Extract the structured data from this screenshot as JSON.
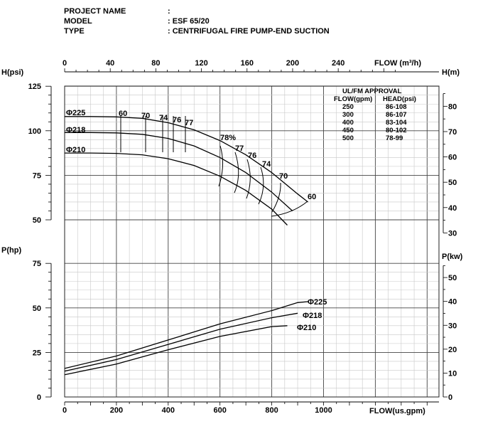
{
  "header": {
    "rows": [
      {
        "label": "PROJECT NAME",
        "value": ""
      },
      {
        "label": "MODEL",
        "value": "ESF 65/20"
      },
      {
        "label": "TYPE",
        "value": "CENTRIFUGAL FIRE PUMP-END SUCTION"
      }
    ]
  },
  "chart_data": [
    {
      "type": "line",
      "title": "",
      "xlabel": "FLOW(us.gpm)",
      "x_secondary_label": "FLOW (m³/h)",
      "ylabel": "H(psi)",
      "y_secondary_label": "H(m)",
      "xlim": [
        0,
        1300
      ],
      "ylim": [
        50,
        125
      ],
      "x_ticks": [
        0,
        200,
        400,
        600,
        800,
        1000
      ],
      "x_secondary_ticks": [
        0,
        40,
        80,
        120,
        160,
        200,
        240
      ],
      "y_ticks": [
        50,
        75,
        100,
        125
      ],
      "y_secondary_ticks": [
        30,
        40,
        50,
        60,
        70,
        80
      ],
      "grid": true,
      "series": [
        {
          "name": "Φ225",
          "x": [
            0,
            100,
            200,
            300,
            400,
            500,
            600,
            700,
            800,
            900,
            940
          ],
          "y": [
            108,
            108,
            107.8,
            107,
            104.5,
            100.5,
            94.5,
            86.5,
            76.5,
            64.5,
            60
          ]
        },
        {
          "name": "Φ218",
          "x": [
            0,
            100,
            200,
            300,
            400,
            500,
            600,
            700,
            800,
            880
          ],
          "y": [
            99,
            99,
            98.8,
            98,
            95.7,
            91.5,
            85,
            76.5,
            65.5,
            55
          ]
        },
        {
          "name": "Φ210",
          "x": [
            0,
            100,
            200,
            300,
            400,
            500,
            600,
            700,
            800,
            860
          ],
          "y": [
            87.5,
            87.5,
            87.3,
            86.5,
            84.3,
            80.5,
            74.5,
            66.5,
            56,
            47
          ]
        }
      ],
      "efficiency_labels": [
        "60",
        "70",
        "74",
        "76",
        "77",
        "78%",
        "77",
        "76",
        "74",
        "70",
        "60"
      ],
      "approval_table": {
        "title": "UL/FM APPROVAL",
        "columns": [
          "FLOW(gpm)",
          "HEAD(psi)"
        ],
        "rows": [
          [
            "250",
            "86-108"
          ],
          [
            "300",
            "86-107"
          ],
          [
            "400",
            "83-104"
          ],
          [
            "450",
            "80-102"
          ],
          [
            "500",
            "78-99"
          ]
        ]
      }
    },
    {
      "type": "line",
      "title": "",
      "xlabel": "FLOW(us.gpm)",
      "ylabel": "P(hp)",
      "y_secondary_label": "P(kw)",
      "xlim": [
        0,
        1300
      ],
      "ylim": [
        0,
        75
      ],
      "y_ticks": [
        0,
        25,
        50,
        75
      ],
      "y_secondary_ticks": [
        0,
        10,
        20,
        30,
        40,
        50
      ],
      "grid": true,
      "series": [
        {
          "name": "Φ225",
          "x": [
            0,
            200,
            400,
            600,
            800,
            900,
            940
          ],
          "y": [
            16,
            23,
            32,
            41,
            48.5,
            53,
            53.5
          ]
        },
        {
          "name": "Φ218",
          "x": [
            0,
            200,
            400,
            600,
            800,
            900
          ],
          "y": [
            14.5,
            21,
            29.5,
            38,
            44.5,
            47
          ]
        },
        {
          "name": "Φ210",
          "x": [
            0,
            200,
            400,
            600,
            800,
            860
          ],
          "y": [
            12.5,
            18.5,
            26.5,
            34,
            39.5,
            40
          ]
        }
      ]
    }
  ]
}
